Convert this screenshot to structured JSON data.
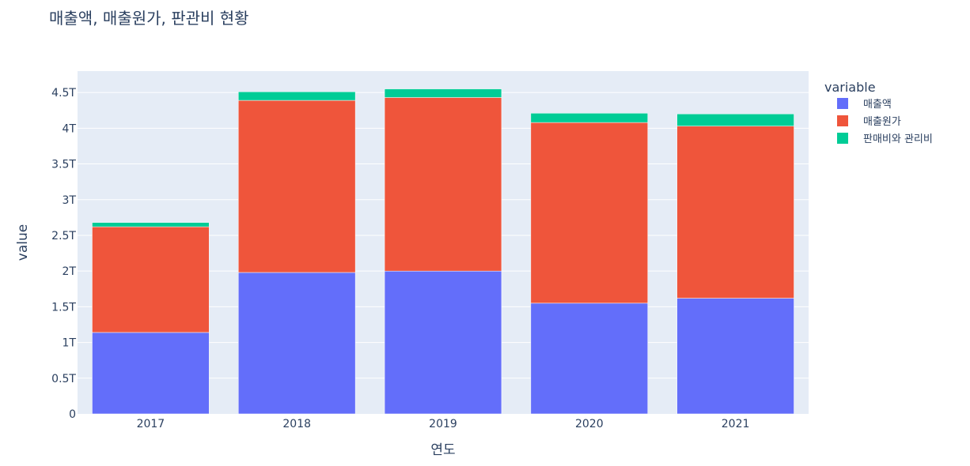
{
  "chart_data": {
    "type": "bar",
    "stacked": true,
    "title": "매출액, 매출원가, 판관비 현황",
    "xlabel": "연도",
    "ylabel": "value",
    "categories": [
      "2017",
      "2018",
      "2019",
      "2020",
      "2021"
    ],
    "ylim": [
      0,
      4.8
    ],
    "yticks": [
      0,
      0.5,
      1,
      1.5,
      2,
      2.5,
      3,
      3.5,
      4,
      4.5
    ],
    "ytick_labels": [
      "0",
      "0.5T",
      "1T",
      "1.5T",
      "2T",
      "2.5T",
      "3T",
      "3.5T",
      "4T",
      "4.5T"
    ],
    "value_unit": "T",
    "grid": true,
    "legend_title": "variable",
    "legend_position": "right",
    "plot_bgcolor": "#E5ECF6",
    "series": [
      {
        "name": "매출액",
        "color": "#636EFA",
        "values": [
          1.14,
          1.98,
          2.0,
          1.55,
          1.62
        ]
      },
      {
        "name": "매출원가",
        "color": "#EF553B",
        "values": [
          1.48,
          2.41,
          2.43,
          2.53,
          2.41
        ]
      },
      {
        "name": "판매비와 관리비",
        "color": "#00CC96",
        "values": [
          0.06,
          0.12,
          0.12,
          0.13,
          0.17
        ]
      }
    ]
  }
}
